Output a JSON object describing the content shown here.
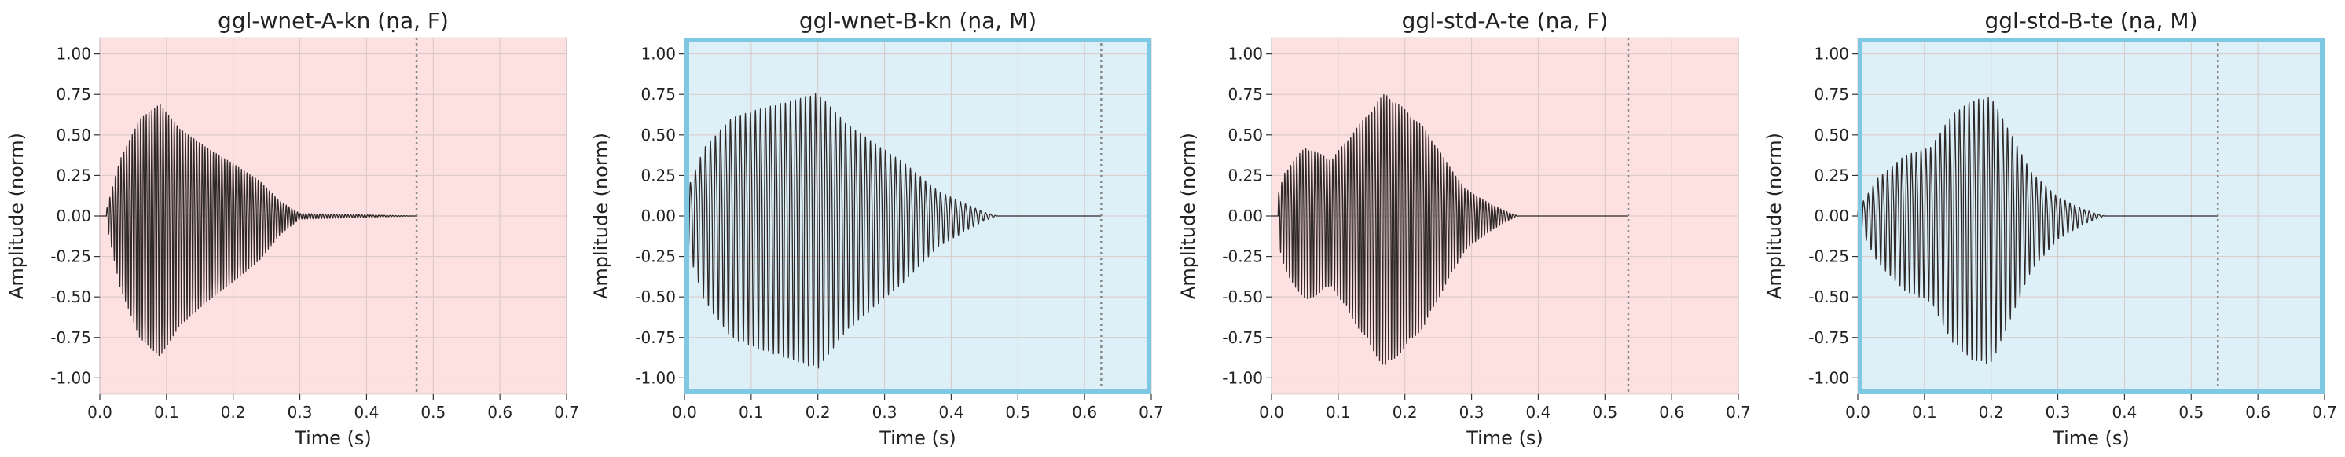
{
  "chart_data": [
    {
      "type": "line",
      "title": "ggl-wnet-A-kn (ṇa, F)",
      "xlabel": "Time (s)",
      "ylabel": "Amplitude (norm)",
      "xlim": [
        0.0,
        0.7
      ],
      "ylim": [
        -1.1,
        1.1
      ],
      "xticks": [
        "0.0",
        "0.1",
        "0.2",
        "0.3",
        "0.4",
        "0.5",
        "0.6",
        "0.7"
      ],
      "yticks": [
        "1.00",
        "0.75",
        "0.50",
        "0.25",
        "0.00",
        "-0.25",
        "-0.50",
        "-0.75",
        "-1.00"
      ],
      "grid": true,
      "background_color": "#fde0e0",
      "highlight_border": false,
      "end_marker_x": 0.475,
      "waveform": {
        "onset": 0.01,
        "end": 0.475,
        "cycle_period": 0.0042,
        "envelope": [
          [
            0.0,
            0.0
          ],
          [
            0.01,
            0.05
          ],
          [
            0.03,
            0.45
          ],
          [
            0.06,
            0.78
          ],
          [
            0.09,
            0.9
          ],
          [
            0.12,
            0.7
          ],
          [
            0.16,
            0.55
          ],
          [
            0.2,
            0.42
          ],
          [
            0.24,
            0.28
          ],
          [
            0.27,
            0.12
          ],
          [
            0.3,
            0.02
          ],
          [
            0.475,
            0.0
          ]
        ]
      }
    },
    {
      "type": "line",
      "title": "ggl-wnet-B-kn (ṇa, M)",
      "xlabel": "Time (s)",
      "ylabel": "Amplitude (norm)",
      "xlim": [
        0.0,
        0.7
      ],
      "ylim": [
        -1.1,
        1.1
      ],
      "xticks": [
        "0.0",
        "0.1",
        "0.2",
        "0.3",
        "0.4",
        "0.5",
        "0.6",
        "0.7"
      ],
      "yticks": [
        "1.00",
        "0.75",
        "0.50",
        "0.25",
        "0.00",
        "-0.25",
        "-0.50",
        "-0.75",
        "-1.00"
      ],
      "grid": true,
      "background_color": "#ddf0f7",
      "highlight_border": true,
      "border_color": "#7ec8e3",
      "end_marker_x": 0.625,
      "waveform": {
        "onset": 0.0,
        "end": 0.625,
        "cycle_period": 0.0075,
        "envelope": [
          [
            0.0,
            0.15
          ],
          [
            0.03,
            0.55
          ],
          [
            0.07,
            0.78
          ],
          [
            0.11,
            0.85
          ],
          [
            0.16,
            0.92
          ],
          [
            0.2,
            0.98
          ],
          [
            0.24,
            0.75
          ],
          [
            0.28,
            0.6
          ],
          [
            0.33,
            0.42
          ],
          [
            0.38,
            0.2
          ],
          [
            0.42,
            0.1
          ],
          [
            0.45,
            0.03
          ],
          [
            0.47,
            0.0
          ],
          [
            0.625,
            0.0
          ]
        ]
      }
    },
    {
      "type": "line",
      "title": "ggl-std-A-te (ṇa, F)",
      "xlabel": "Time (s)",
      "ylabel": "Amplitude (norm)",
      "xlim": [
        0.0,
        0.7
      ],
      "ylim": [
        -1.1,
        1.1
      ],
      "xticks": [
        "0.0",
        "0.1",
        "0.2",
        "0.3",
        "0.4",
        "0.5",
        "0.6",
        "0.7"
      ],
      "yticks": [
        "1.00",
        "0.75",
        "0.50",
        "0.25",
        "0.00",
        "-0.25",
        "-0.50",
        "-0.75",
        "-1.00"
      ],
      "grid": true,
      "background_color": "#fde0e0",
      "highlight_border": false,
      "end_marker_x": 0.535,
      "waveform": {
        "onset": 0.01,
        "end": 0.535,
        "cycle_period": 0.0045,
        "envelope": [
          [
            0.0,
            0.0
          ],
          [
            0.02,
            0.35
          ],
          [
            0.05,
            0.55
          ],
          [
            0.09,
            0.45
          ],
          [
            0.12,
            0.65
          ],
          [
            0.15,
            0.85
          ],
          [
            0.17,
            0.98
          ],
          [
            0.2,
            0.85
          ],
          [
            0.23,
            0.7
          ],
          [
            0.26,
            0.45
          ],
          [
            0.29,
            0.22
          ],
          [
            0.32,
            0.12
          ],
          [
            0.35,
            0.04
          ],
          [
            0.37,
            0.0
          ],
          [
            0.535,
            0.0
          ]
        ]
      }
    },
    {
      "type": "line",
      "title": "ggl-std-B-te (ṇa, M)",
      "xlabel": "Time (s)",
      "ylabel": "Amplitude (norm)",
      "xlim": [
        0.0,
        0.7
      ],
      "ylim": [
        -1.1,
        1.1
      ],
      "xticks": [
        "0.0",
        "0.1",
        "0.2",
        "0.3",
        "0.4",
        "0.5",
        "0.6",
        "0.7"
      ],
      "yticks": [
        "1.00",
        "0.75",
        "0.50",
        "0.25",
        "0.00",
        "-0.25",
        "-0.50",
        "-0.75",
        "-1.00"
      ],
      "grid": true,
      "background_color": "#ddf0f7",
      "highlight_border": true,
      "border_color": "#7ec8e3",
      "end_marker_x": 0.54,
      "waveform": {
        "onset": 0.0,
        "end": 0.54,
        "cycle_period": 0.0072,
        "envelope": [
          [
            0.0,
            0.05
          ],
          [
            0.03,
            0.3
          ],
          [
            0.07,
            0.48
          ],
          [
            0.11,
            0.55
          ],
          [
            0.14,
            0.8
          ],
          [
            0.17,
            0.92
          ],
          [
            0.2,
            0.95
          ],
          [
            0.23,
            0.65
          ],
          [
            0.26,
            0.35
          ],
          [
            0.3,
            0.15
          ],
          [
            0.34,
            0.05
          ],
          [
            0.37,
            0.0
          ],
          [
            0.54,
            0.0
          ]
        ]
      }
    }
  ],
  "colors": {
    "waveform": "#2e2828",
    "grid": "#d8c8c8",
    "end_marker": "#888888",
    "axis": "#333333"
  }
}
